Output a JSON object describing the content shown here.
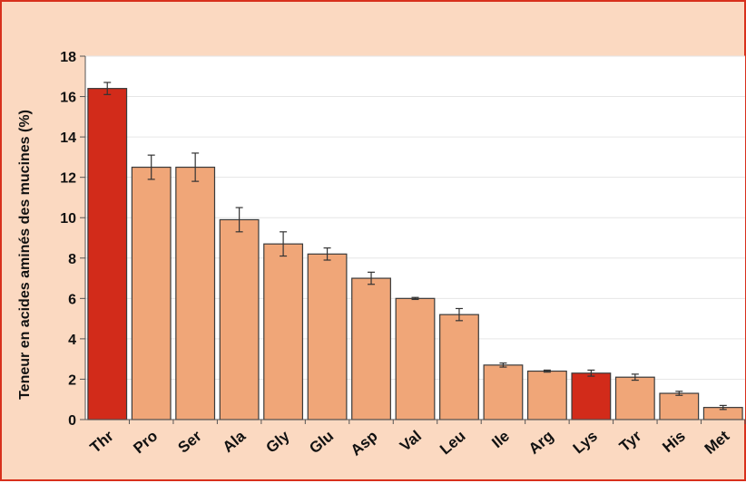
{
  "chart_data": {
    "type": "bar",
    "ylabel": "Teneur en acides aminés des mucines (%)",
    "ylim": [
      0,
      18
    ],
    "yticks": [
      0,
      2,
      4,
      6,
      8,
      10,
      12,
      14,
      16,
      18
    ],
    "categories": [
      "Thr",
      "Pro",
      "Ser",
      "Ala",
      "Gly",
      "Glu",
      "Asp",
      "Val",
      "Leu",
      "Ile",
      "Arg",
      "Lys",
      "Tyr",
      "His",
      "Met"
    ],
    "values": [
      16.4,
      12.5,
      12.5,
      9.9,
      8.7,
      8.2,
      7.0,
      6.0,
      5.2,
      2.7,
      2.4,
      2.3,
      2.1,
      1.3,
      0.6
    ],
    "errors": [
      0.3,
      0.6,
      0.7,
      0.6,
      0.6,
      0.3,
      0.3,
      0.05,
      0.3,
      0.1,
      0.05,
      0.15,
      0.15,
      0.1,
      0.1
    ],
    "highlighted": [
      "Thr",
      "Lys"
    ],
    "grid": true,
    "colors": {
      "bar": "#f0a678",
      "bar_highlight": "#d22b1a",
      "background": "#fbd9c1",
      "plot_area": "#ffffff",
      "frame": "#d8301c"
    }
  }
}
